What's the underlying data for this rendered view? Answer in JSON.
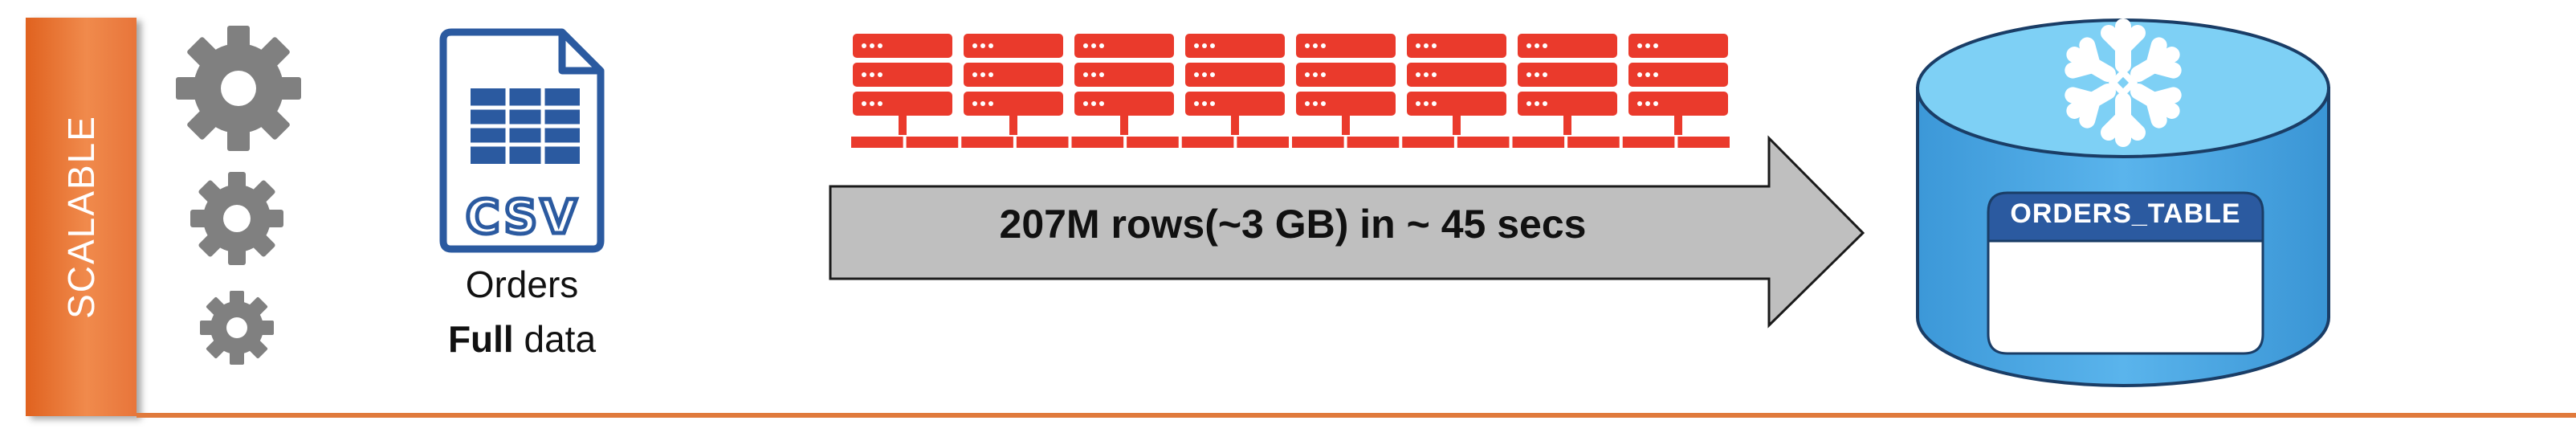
{
  "side_label": "SCALABLE",
  "source": {
    "icon_text": "CSV",
    "caption_line1": "Orders",
    "caption_bold": "Full",
    "caption_rest": " data"
  },
  "transfer": {
    "label": "207M rows(~3 GB) in ~ 45 secs"
  },
  "destination": {
    "table_name": "ORDERS_TABLE"
  },
  "server_count": 8,
  "colors": {
    "accent_orange": "#e8753a",
    "server_red": "#ea3a2c",
    "csv_blue": "#2b5aa0",
    "db_blue": "#4aa8e4",
    "db_top": "#7ed0f5",
    "arrow_gray": "#bfbfbf",
    "gear_gray": "#808080"
  },
  "icons": [
    "gear-icon",
    "csv-file-icon",
    "server-icon",
    "snowflake-icon",
    "database-icon"
  ]
}
